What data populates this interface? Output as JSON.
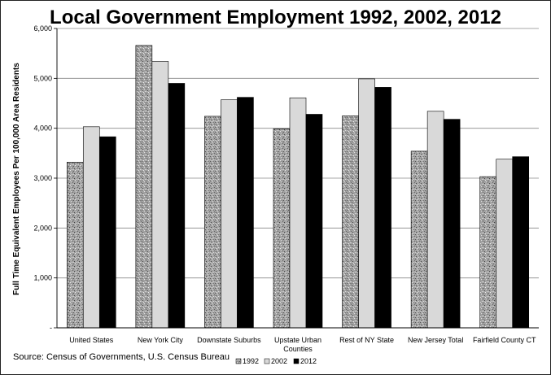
{
  "chart_data": {
    "type": "bar",
    "title": "Local Government Employment 1992, 2002, 2012",
    "ylabel": "Full Time Equivalent Employees Per 100,000 Area Residents",
    "xlabel": "",
    "source": "Source:  Census of Governments, U.S. Census Bureau",
    "categories": [
      [
        "United States"
      ],
      [
        "New York City"
      ],
      [
        "Downstate Suburbs"
      ],
      [
        "Upstate Urban",
        "Counties"
      ],
      [
        "Rest of NY State"
      ],
      [
        "New Jersey Total"
      ],
      [
        "Fairfield County CT"
      ]
    ],
    "series": [
      {
        "name": "1992",
        "values": [
          3320,
          5660,
          4240,
          3990,
          4250,
          3540,
          3030
        ],
        "color": "#9a9a9a"
      },
      {
        "name": "2002",
        "values": [
          4030,
          5340,
          4570,
          4610,
          4990,
          4340,
          3380
        ],
        "color": "#d9d9d9"
      },
      {
        "name": "2012",
        "values": [
          3830,
          4900,
          4620,
          4280,
          4820,
          4180,
          3430
        ],
        "color": "#000000"
      }
    ],
    "ylim": [
      0,
      6000
    ],
    "yticks": [
      {
        "value": 0,
        "label": "-"
      },
      {
        "value": 1000,
        "label": "1,000"
      },
      {
        "value": 2000,
        "label": "2,000"
      },
      {
        "value": 3000,
        "label": "3,000"
      },
      {
        "value": 4000,
        "label": "4,000"
      },
      {
        "value": 5000,
        "label": "5,000"
      },
      {
        "value": 6000,
        "label": "6,000"
      }
    ],
    "grid": true,
    "legend": "bottom"
  }
}
